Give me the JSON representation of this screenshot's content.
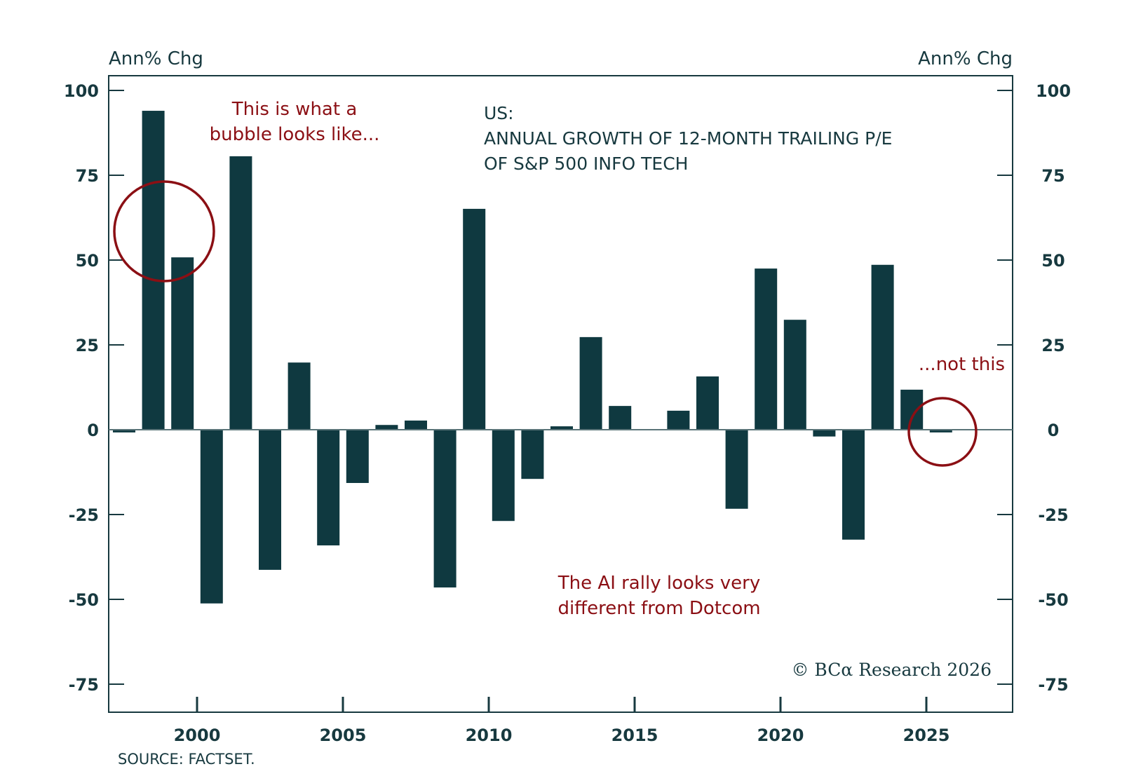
{
  "chart_data": {
    "type": "bar",
    "title_lines": [
      "US:",
      "ANNUAL GROWTH OF 12-MONTH TRAILING P/E",
      "OF S&P 500 INFO TECH"
    ],
    "ylabel_left": "Ann% Chg",
    "ylabel_right": "Ann% Chg",
    "xlabel": "",
    "ylim": [
      -75,
      100
    ],
    "yticks": [
      100,
      75,
      50,
      25,
      0,
      -25,
      -50,
      -75
    ],
    "xticks": [
      2000,
      2005,
      2010,
      2015,
      2020,
      2025
    ],
    "xlim": [
      1996.5,
      2027.5
    ],
    "grid": false,
    "legend": "none",
    "categories": [
      1997,
      1998,
      1999,
      2000,
      2001,
      2002,
      2003,
      2004,
      2005,
      2006,
      2007,
      2008,
      2009,
      2010,
      2011,
      2012,
      2013,
      2014,
      2015,
      2016,
      2017,
      2018,
      2019,
      2020,
      2021,
      2022,
      2023,
      2024,
      2025
    ],
    "values": [
      -0.8,
      94.0,
      50.8,
      -51.2,
      80.6,
      -41.3,
      19.8,
      -34.1,
      -15.7,
      1.4,
      2.7,
      -46.5,
      65.1,
      -26.9,
      -14.5,
      1.0,
      27.3,
      7.0,
      0.0,
      5.6,
      15.7,
      -23.3,
      47.5,
      32.4,
      -2.0,
      -32.4,
      48.6,
      11.8,
      -0.8
    ],
    "series_color": "#0f3940",
    "annotations": [
      {
        "id": "bubble",
        "lines": [
          "This is what a",
          "bubble looks like..."
        ],
        "color": "#8b0f14"
      },
      {
        "id": "not-this",
        "lines": [
          "...not this"
        ],
        "color": "#8b0f14"
      },
      {
        "id": "ai-rally",
        "lines": [
          "The AI rally looks very",
          "different from Dotcom"
        ],
        "color": "#8b0f14"
      }
    ],
    "highlight_circles": [
      {
        "id": "dotcom-circle",
        "around_years": [
          1998,
          1999
        ],
        "color": "#8b0f14"
      },
      {
        "id": "ai-circle",
        "around_years": [
          2025
        ],
        "color": "#8b0f14"
      }
    ],
    "source": "SOURCE: FACTSET.",
    "copyright": "© BCα Research 2026"
  }
}
